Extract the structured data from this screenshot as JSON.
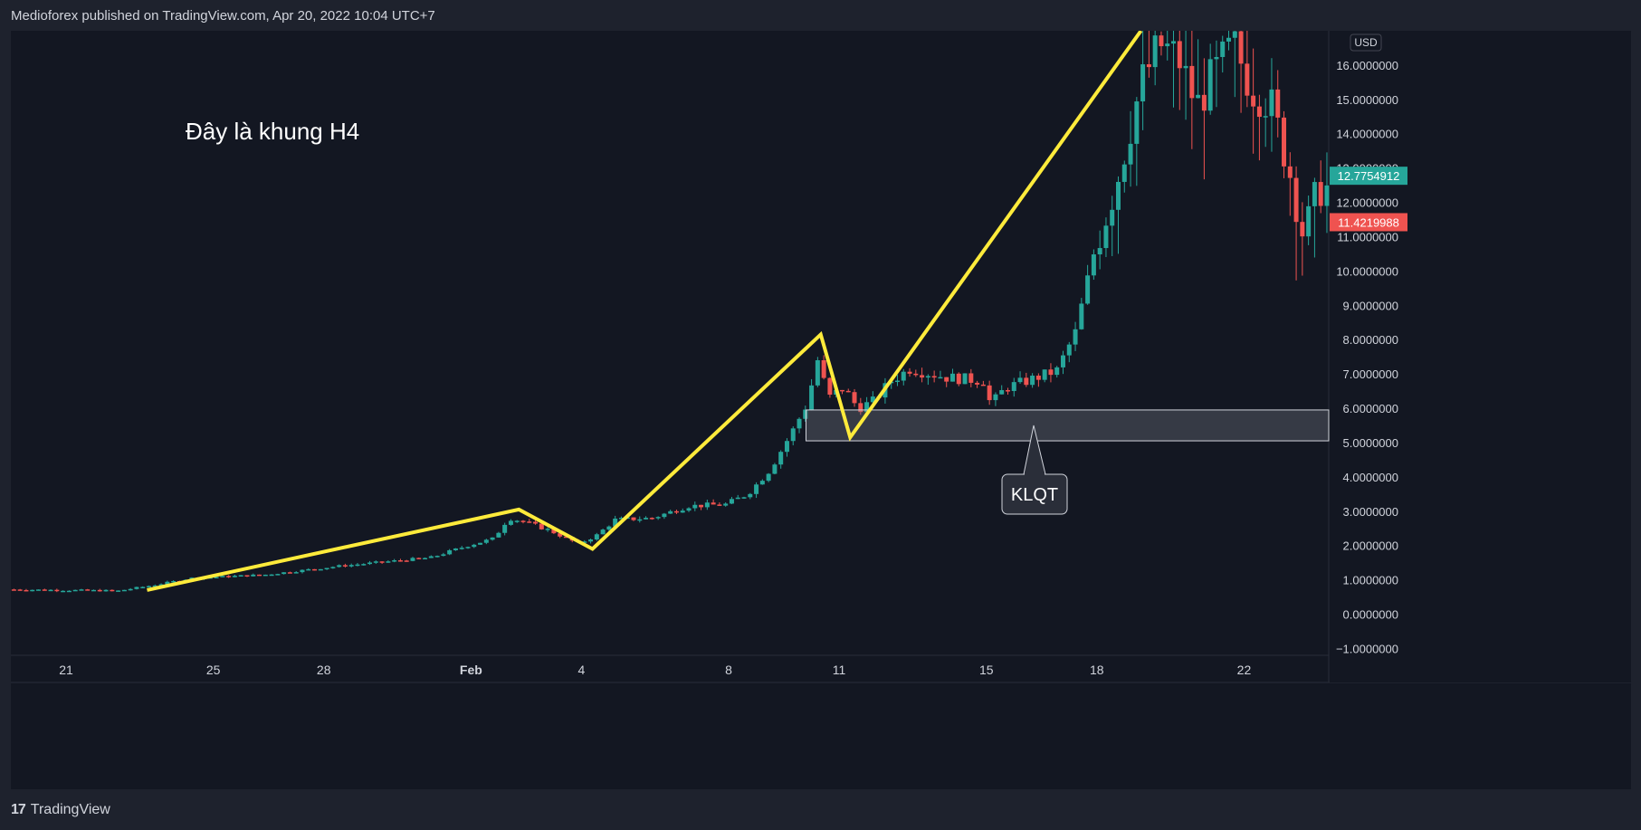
{
  "header": {
    "publish_line": "Medioforex published on TradingView.com, Apr 20, 2022 10:04 UTC+7"
  },
  "footer": {
    "brand": "TradingView"
  },
  "colors": {
    "up": "#26a69a",
    "down": "#ef5350",
    "trend": "#ffeb3b",
    "background": "#131722",
    "axis_text": "#d1d4dc"
  },
  "chart_data": {
    "type": "candlestick",
    "currency": "USD",
    "annotation_text": "Đây là khung H4",
    "zone_label": "KLQT",
    "price_labels": [
      {
        "value": 12.7754912,
        "text": "12.7754912",
        "color": "#26a69a"
      },
      {
        "value": 11.4219988,
        "text": "11.4219988",
        "color": "#ef5350"
      }
    ],
    "ylim": [
      -1.2,
      17.0
    ],
    "xlim": [
      -0.5,
      35.3
    ],
    "y_ticks": [
      {
        "value": 16,
        "label": "16.0000000"
      },
      {
        "value": 15,
        "label": "15.0000000"
      },
      {
        "value": 14,
        "label": "14.0000000"
      },
      {
        "value": 13,
        "label": "13.0000000"
      },
      {
        "value": 12,
        "label": "12.0000000"
      },
      {
        "value": 11,
        "label": "11.0000000"
      },
      {
        "value": 10,
        "label": "10.0000000"
      },
      {
        "value": 9,
        "label": "9.0000000"
      },
      {
        "value": 8,
        "label": "8.0000000"
      },
      {
        "value": 7,
        "label": "7.0000000"
      },
      {
        "value": 6,
        "label": "6.0000000"
      },
      {
        "value": 5,
        "label": "5.0000000"
      },
      {
        "value": 4,
        "label": "4.0000000"
      },
      {
        "value": 3,
        "label": "3.0000000"
      },
      {
        "value": 2,
        "label": "2.0000000"
      },
      {
        "value": 1,
        "label": "1.0000000"
      },
      {
        "value": 0,
        "label": "0.0000000"
      },
      {
        "value": -1,
        "label": "−1.0000000"
      }
    ],
    "x_ticks": [
      {
        "value": 1,
        "label": "21"
      },
      {
        "value": 5,
        "label": "25"
      },
      {
        "value": 8,
        "label": "28"
      },
      {
        "value": 12,
        "label": "Feb"
      },
      {
        "value": 15,
        "label": "4"
      },
      {
        "value": 19,
        "label": "8"
      },
      {
        "value": 22,
        "label": "11"
      },
      {
        "value": 26,
        "label": "15"
      },
      {
        "value": 29,
        "label": "18"
      },
      {
        "value": 33,
        "label": "22"
      }
    ],
    "zone": {
      "x_start": 21.1,
      "x_end": 35.3,
      "y_low": 5.05,
      "y_high": 5.95
    },
    "trend_line": [
      [
        3.2,
        0.7
      ],
      [
        13.3,
        3.05
      ],
      [
        15.3,
        1.9
      ],
      [
        21.5,
        8.15
      ],
      [
        22.3,
        5.15
      ],
      [
        30.2,
        17.0
      ]
    ],
    "candles_note": "open/high/low/close estimated from chart, daily index with 6 four-hour bars per day",
    "candle_anchors": [
      [
        -0.5,
        0.72
      ],
      [
        2.5,
        0.68
      ],
      [
        3.5,
        0.85
      ],
      [
        4.5,
        1.05
      ],
      [
        6.5,
        1.15
      ],
      [
        8.5,
        1.4
      ],
      [
        10.0,
        1.55
      ],
      [
        11.0,
        1.65
      ],
      [
        12.0,
        2.0
      ],
      [
        12.7,
        2.2
      ],
      [
        13.1,
        2.8
      ],
      [
        13.5,
        2.7
      ],
      [
        14.2,
        2.45
      ],
      [
        15.0,
        2.05
      ],
      [
        15.5,
        2.3
      ],
      [
        16.0,
        2.75
      ],
      [
        17.0,
        2.8
      ],
      [
        18.0,
        3.15
      ],
      [
        19.0,
        3.2
      ],
      [
        19.6,
        3.5
      ],
      [
        20.2,
        4.2
      ],
      [
        20.8,
        5.3
      ],
      [
        21.2,
        6.1
      ],
      [
        21.5,
        7.4
      ],
      [
        21.8,
        6.3
      ],
      [
        22.2,
        6.6
      ],
      [
        22.6,
        6.0
      ],
      [
        23.0,
        6.2
      ],
      [
        23.5,
        6.8
      ],
      [
        24.0,
        7.15
      ],
      [
        25.0,
        6.9
      ],
      [
        26.0,
        6.8
      ],
      [
        26.2,
        6.1
      ],
      [
        26.6,
        6.6
      ],
      [
        27.2,
        6.8
      ],
      [
        28.0,
        7.1
      ],
      [
        28.5,
        8.2
      ],
      [
        29.0,
        10.5
      ],
      [
        29.6,
        12.5
      ],
      [
        30.3,
        15.5
      ],
      [
        30.8,
        16.6
      ],
      [
        31.3,
        16.2
      ],
      [
        31.8,
        14.8
      ],
      [
        32.3,
        15.8
      ],
      [
        32.8,
        16.6
      ],
      [
        33.3,
        15.3
      ],
      [
        33.8,
        14.9
      ],
      [
        34.3,
        13.0
      ],
      [
        34.7,
        11.0
      ],
      [
        35.1,
        12.4
      ]
    ]
  }
}
